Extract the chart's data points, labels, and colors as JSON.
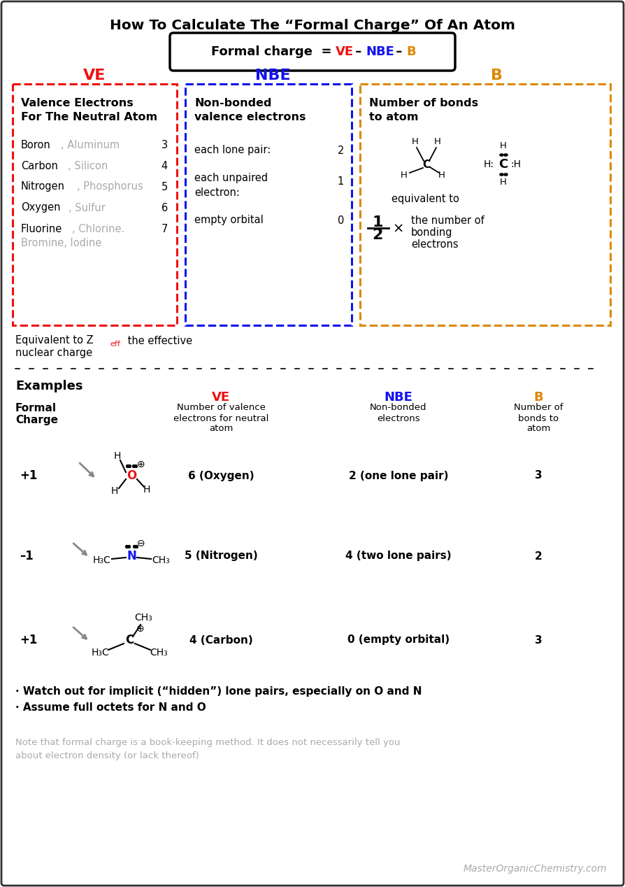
{
  "title": "How To Calculate The “Formal Charge” Of An Atom",
  "ve_color": "#ee1111",
  "nbe_color": "#1111ee",
  "b_color": "#dd8800",
  "black_color": "#111111",
  "gray_color": "#aaaaaa",
  "dark_gray": "#888888",
  "bg_color": "#ffffff",
  "ex1_charge": "+1",
  "ex1_ve": "6 (Oxygen)",
  "ex1_nbe": "2 (one lone pair)",
  "ex1_b": "3",
  "ex2_charge": "–1",
  "ex2_ve": "5 (Nitrogen)",
  "ex2_nbe": "4 (two lone pairs)",
  "ex2_b": "2",
  "ex3_charge": "+1",
  "ex3_ve": "4 (Carbon)",
  "ex3_nbe": "0 (empty orbital)",
  "ex3_b": "3",
  "bullet1": "· Watch out for implicit (“hidden”) lone pairs, especially on O and N",
  "bullet2": "· Assume full octets for N and O",
  "note_text": "Note that formal charge is a book-keeping method. It does not necessarily tell you\nabout electron density (or lack thereof)",
  "watermark": "MasterOrganicChemistry.com"
}
